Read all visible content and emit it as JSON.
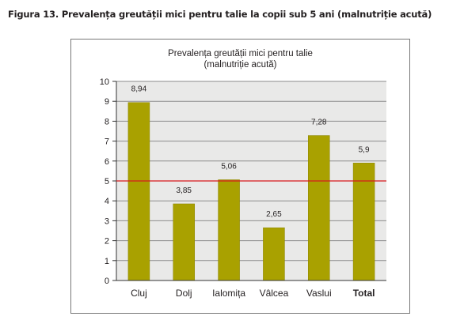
{
  "caption": "Figura 13. Prevalența greutății mici pentru talie la copii sub 5 ani (malnutriție acută)",
  "chart_data": {
    "type": "bar",
    "title": "Prevalența greutății mici pentru talie",
    "subtitle": "(malnutriție acută)",
    "categories": [
      "Cluj",
      "Dolj",
      "Ialomița",
      "Vâlcea",
      "Vaslui",
      "Total"
    ],
    "values": [
      8.94,
      3.85,
      5.06,
      2.65,
      7.28,
      5.9
    ],
    "data_labels": [
      "8,94",
      "3,85",
      "5,06",
      "2,65",
      "7,28",
      "5,9"
    ],
    "bold_categories": [
      "Total"
    ],
    "ylim": [
      0,
      10
    ],
    "yticks": [
      "0",
      "1",
      "2",
      "3",
      "4",
      "5",
      "6",
      "7",
      "8",
      "9",
      "10"
    ],
    "reference_line": 5,
    "grid": true,
    "colors": {
      "bar": "#a9a100",
      "bar_edge": "#8a8400",
      "plot_background": "#e9e9e8",
      "grid": "#8c8c8c",
      "reference_line": "#d7191c"
    }
  }
}
